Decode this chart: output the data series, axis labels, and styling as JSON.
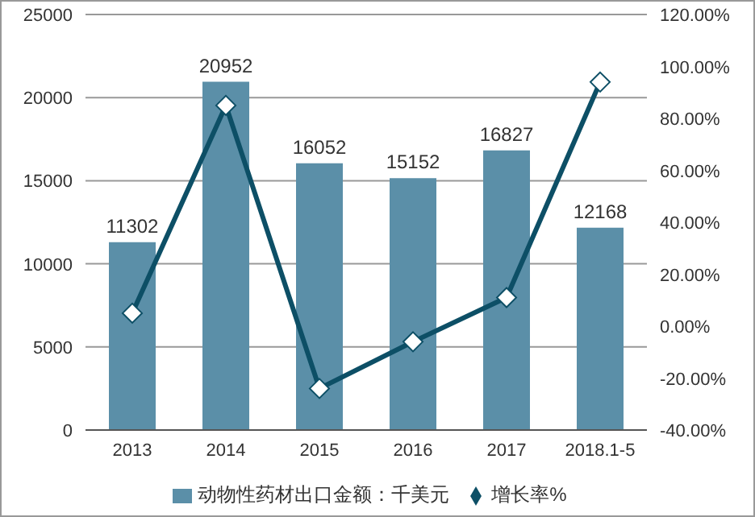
{
  "chart_data": {
    "type": "bar",
    "categories": [
      "2013",
      "2014",
      "2015",
      "2016",
      "2017",
      "2018.1-5"
    ],
    "series": [
      {
        "name": "动物性药材出口金额：千美元",
        "color": "#5b8fa8",
        "values": [
          11302,
          20952,
          16052,
          15152,
          16827,
          12168
        ],
        "value_labels": [
          "11302",
          "20952",
          "16052",
          "15152",
          "16827",
          "12168"
        ]
      },
      {
        "name": "增长率%",
        "type": "line",
        "axis": "y2",
        "color": "#0d4f66",
        "marker": "diamond",
        "values": [
          5,
          85,
          -24,
          -6,
          11,
          94
        ]
      }
    ],
    "ylim": [
      0,
      25000
    ],
    "yticks": [
      0,
      5000,
      10000,
      15000,
      20000,
      25000
    ],
    "y2lim": [
      -40,
      120
    ],
    "y2ticks": [
      {
        "value": -40,
        "label": "-40.00%"
      },
      {
        "value": -20,
        "label": "-20.00%"
      },
      {
        "value": 0,
        "label": "0.00%"
      },
      {
        "value": 20,
        "label": "20.00%"
      },
      {
        "value": 40,
        "label": "40.00%"
      },
      {
        "value": 60,
        "label": "60.00%"
      },
      {
        "value": 80,
        "label": "80.00%"
      },
      {
        "value": 100,
        "label": "100.00%"
      },
      {
        "value": 120,
        "label": "120.00%"
      }
    ],
    "grid": "y",
    "legend": "bottom"
  }
}
